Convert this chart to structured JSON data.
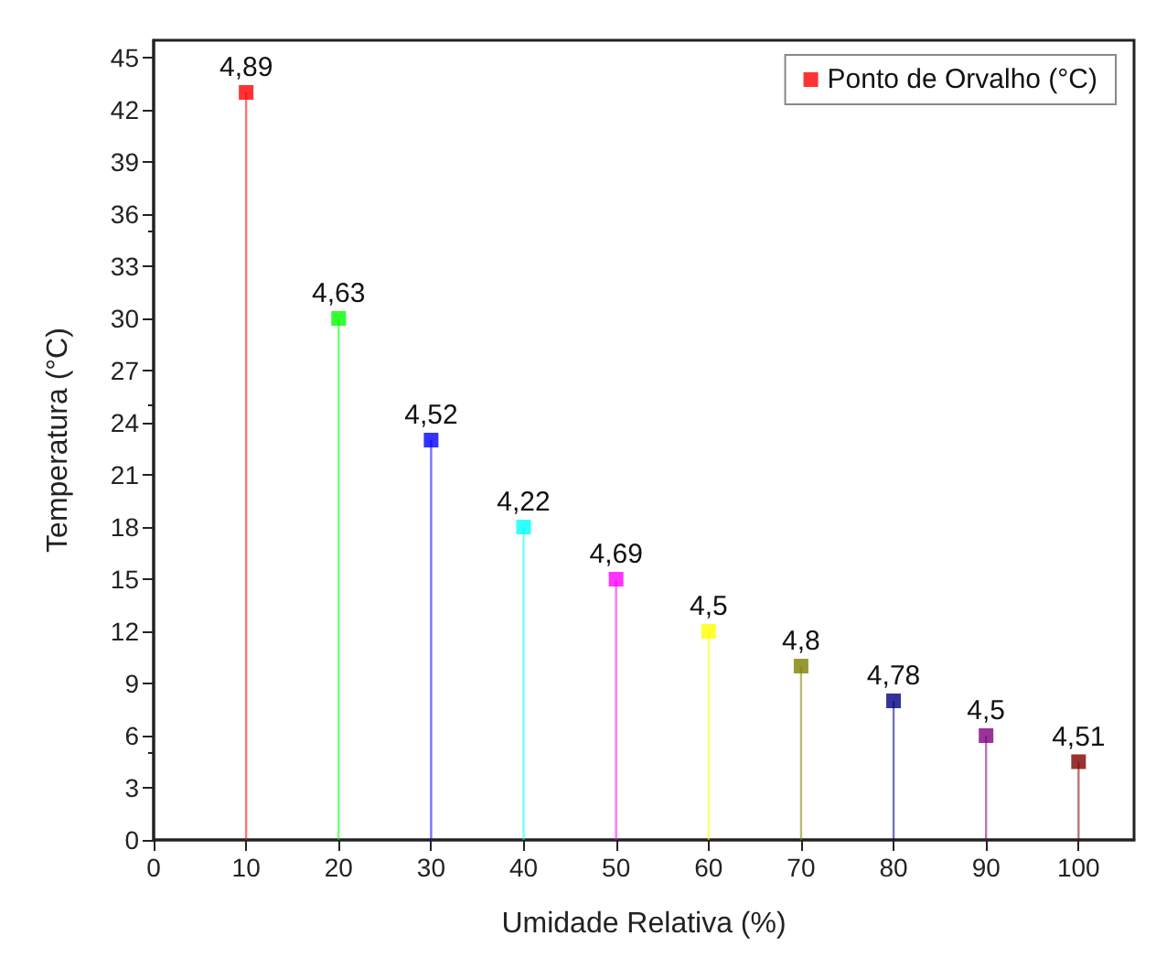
{
  "chart_data": {
    "type": "lollipop",
    "xlabel": "Umidade Relativa (%)",
    "ylabel": "Temperatura (°C)",
    "x": [
      10,
      20,
      30,
      40,
      50,
      60,
      70,
      80,
      90,
      100
    ],
    "series": [
      {
        "name": "Ponto de Orvalho (°C)",
        "color": "#ff0000",
        "values": [
          43,
          30,
          23,
          18,
          15,
          12,
          10,
          8,
          6,
          4.5
        ],
        "colors": [
          "#ff0000",
          "#00ff00",
          "#0000ff",
          "#00ffff",
          "#ff00ff",
          "#ffff00",
          "#808000",
          "#000080",
          "#800080",
          "#800000"
        ]
      }
    ],
    "annotations": [
      {
        "text": "4,89",
        "x": 10,
        "y": 43
      },
      {
        "text": "4,63",
        "x": 20,
        "y": 30
      },
      {
        "text": "4,52",
        "x": 30,
        "y": 23
      },
      {
        "text": "4,22",
        "x": 40,
        "y": 18
      },
      {
        "text": "4,69",
        "x": 50,
        "y": 15
      },
      {
        "text": "4,5",
        "x": 60,
        "y": 12
      },
      {
        "text": "4,8",
        "x": 70,
        "y": 10
      },
      {
        "text": "4,78",
        "x": 80,
        "y": 8
      },
      {
        "text": "4,5",
        "x": 90,
        "y": 6
      },
      {
        "text": "4,51",
        "x": 100,
        "y": 4.5
      }
    ],
    "xlim": [
      0,
      106
    ],
    "xticks": [
      0,
      10,
      20,
      30,
      40,
      50,
      60,
      70,
      80,
      90,
      100
    ],
    "ylim": [
      0,
      46
    ],
    "yticks": [
      0,
      3,
      6,
      9,
      12,
      15,
      18,
      21,
      24,
      27,
      30,
      33,
      36,
      39,
      42,
      45
    ],
    "grid": false,
    "legend": "top right",
    "marker": "square"
  }
}
